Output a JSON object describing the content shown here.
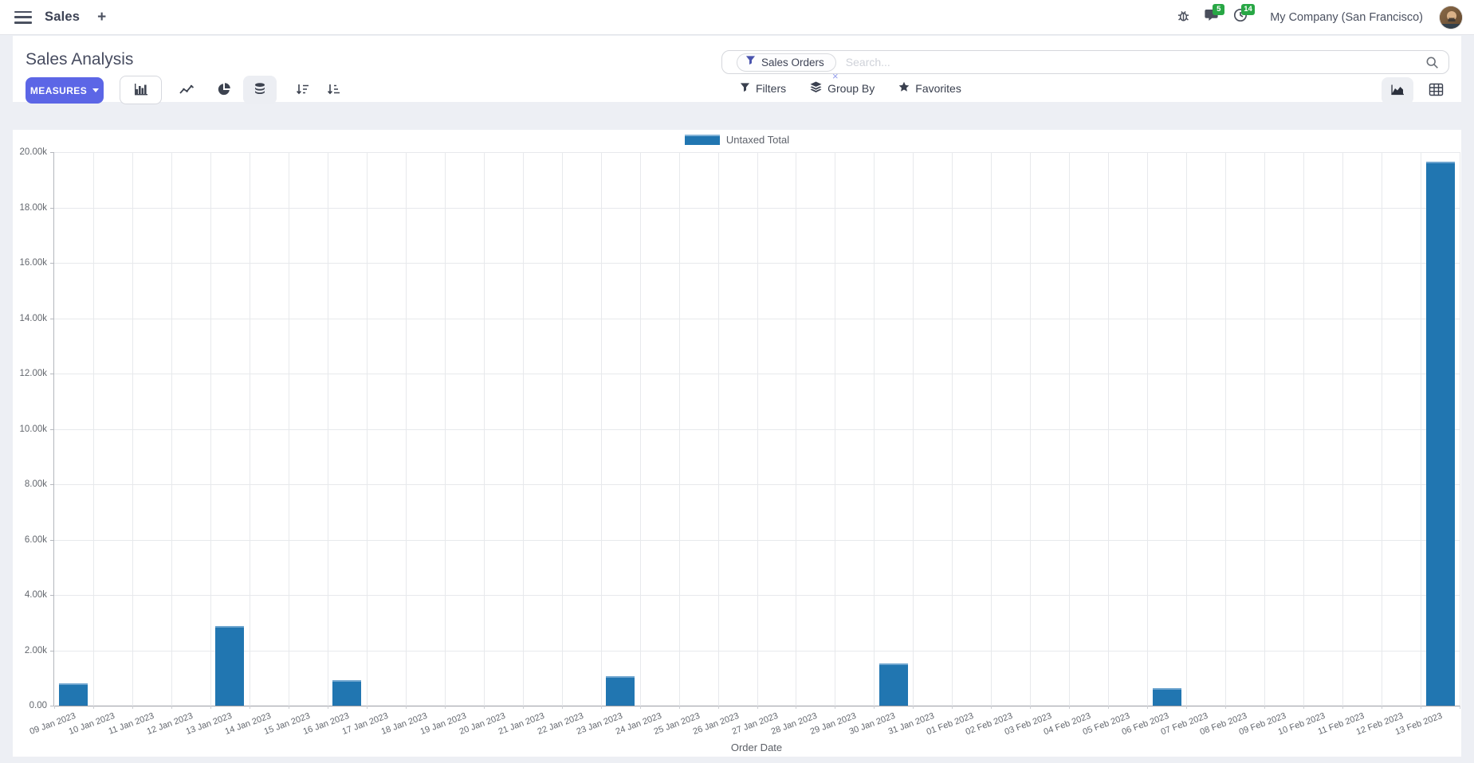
{
  "navbar": {
    "app_name": "Sales",
    "new_button": "+",
    "message_count": "5",
    "activity_count": "14",
    "company": "My Company (San Francisco)"
  },
  "control_panel": {
    "title": "Sales Analysis",
    "measures_button": "MEASURES",
    "search_facet": "Sales Orders",
    "facet_remove": "×",
    "search_placeholder": "Search...",
    "filters": "Filters",
    "group_by": "Group By",
    "favorites": "Favorites"
  },
  "chart_data": {
    "type": "bar",
    "title": "",
    "xlabel": "Order Date",
    "ylabel": "",
    "ylim": [
      0,
      20000
    ],
    "grid": true,
    "legend_position": "top",
    "ytick_values": [
      0,
      2000,
      4000,
      6000,
      8000,
      10000,
      12000,
      14000,
      16000,
      18000,
      20000
    ],
    "ytick_labels": [
      "0.00",
      "2.00k",
      "4.00k",
      "6.00k",
      "8.00k",
      "10.00k",
      "12.00k",
      "14.00k",
      "16.00k",
      "18.00k",
      "20.00k"
    ],
    "categories": [
      "09 Jan 2023",
      "10 Jan 2023",
      "11 Jan 2023",
      "12 Jan 2023",
      "13 Jan 2023",
      "14 Jan 2023",
      "15 Jan 2023",
      "16 Jan 2023",
      "17 Jan 2023",
      "18 Jan 2023",
      "19 Jan 2023",
      "20 Jan 2023",
      "21 Jan 2023",
      "22 Jan 2023",
      "23 Jan 2023",
      "24 Jan 2023",
      "25 Jan 2023",
      "26 Jan 2023",
      "27 Jan 2023",
      "28 Jan 2023",
      "29 Jan 2023",
      "30 Jan 2023",
      "31 Jan 2023",
      "01 Feb 2023",
      "02 Feb 2023",
      "03 Feb 2023",
      "04 Feb 2023",
      "05 Feb 2023",
      "06 Feb 2023",
      "07 Feb 2023",
      "08 Feb 2023",
      "09 Feb 2023",
      "10 Feb 2023",
      "11 Feb 2023",
      "12 Feb 2023",
      "13 Feb 2023"
    ],
    "series": [
      {
        "name": "Untaxed Total",
        "color": "#2176b1",
        "values": [
          800,
          0,
          0,
          0,
          2890,
          0,
          0,
          915,
          0,
          0,
          0,
          0,
          0,
          0,
          1055,
          0,
          0,
          0,
          0,
          0,
          0,
          1520,
          0,
          0,
          0,
          0,
          0,
          0,
          630,
          0,
          0,
          0,
          0,
          0,
          0,
          19660
        ]
      }
    ]
  }
}
